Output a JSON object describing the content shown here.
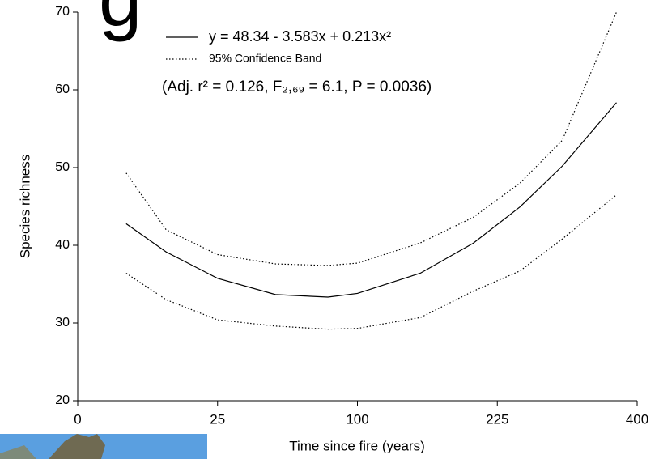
{
  "background_text": "g",
  "chart_data": {
    "type": "line",
    "x_label": "Time since fire (years)",
    "y_label": "Species richness",
    "annotation": "(Adj. r² = 0.126, F₂,₆₉ = 6.1, P = 0.0036)",
    "xscale": "sqrt",
    "xlim": [
      0,
      400
    ],
    "xticks": [
      0,
      25,
      100,
      225,
      400
    ],
    "ylim": [
      20,
      70
    ],
    "yticks": [
      20,
      30,
      40,
      50,
      60,
      70
    ],
    "x": [
      3,
      10,
      25,
      50,
      80,
      100,
      150,
      200,
      250,
      300,
      371
    ],
    "series": [
      {
        "name": "y = 48.34 - 3.583x + 0.213x²",
        "color": "#000000",
        "dash": "solid",
        "values": [
          42.77,
          39.14,
          35.75,
          33.66,
          33.33,
          33.81,
          36.41,
          40.27,
          44.94,
          50.18,
          58.36
        ]
      },
      {
        "name": "95% Confidence Band",
        "color": "#000000",
        "dash": "dotted",
        "values": [
          49.3,
          42.0,
          38.8,
          37.6,
          37.4,
          37.7,
          40.3,
          43.6,
          48.0,
          53.5,
          70.0
        ]
      },
      {
        "color": "#000000",
        "dash": "dotted",
        "values": [
          36.4,
          33.0,
          30.4,
          29.6,
          29.2,
          29.3,
          30.7,
          34.1,
          36.7,
          40.8,
          46.5
        ]
      }
    ]
  }
}
